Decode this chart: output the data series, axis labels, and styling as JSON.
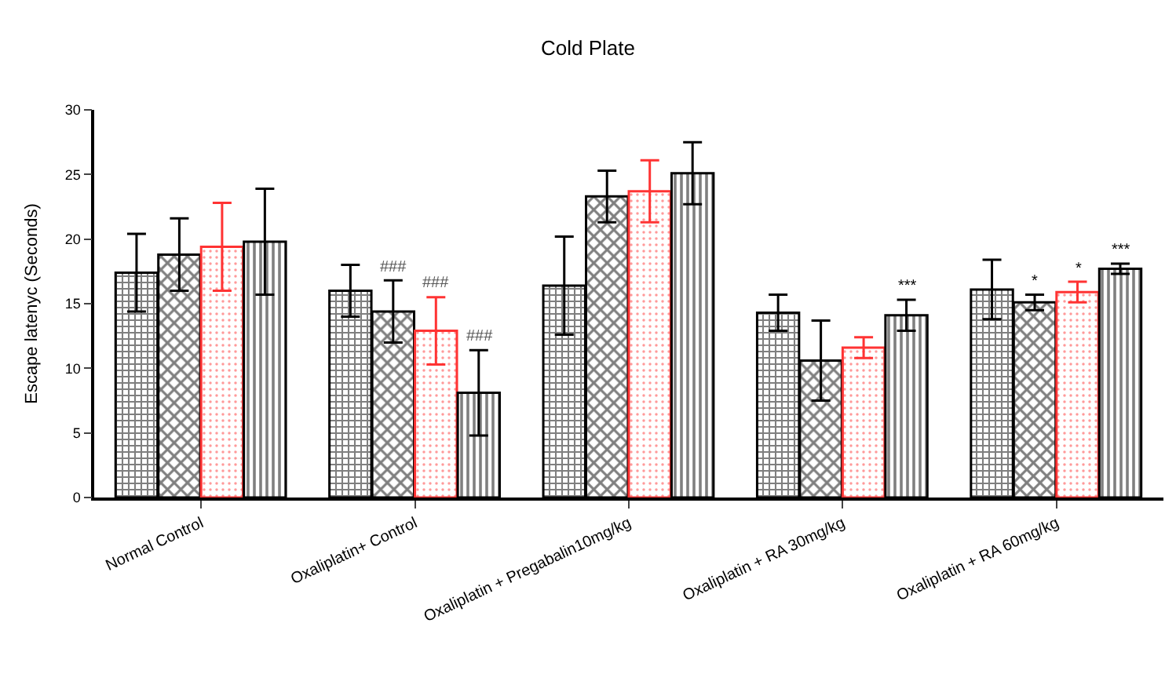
{
  "chart_data": {
    "type": "bar",
    "title": "Cold Plate",
    "ylabel": "Escape latenyc (Seconds)",
    "categories": [
      "Normal Control",
      "Oxaliplatin+ Control",
      "Oxaliplatin + Pregabalin10mg/kg",
      "Oxaliplatin + RA 30mg/kg",
      "Oxaliplatin + RA 60mg/kg"
    ],
    "series": [
      {
        "color": "#000000",
        "values": [
          17.4,
          16.0,
          16.4,
          14.3,
          16.1
        ],
        "errors": [
          3.0,
          2.0,
          3.8,
          1.4,
          2.3
        ],
        "value_labels": [
          null,
          null,
          null,
          null,
          null
        ]
      },
      {
        "color": "#000000",
        "values": [
          18.8,
          14.4,
          23.3,
          10.6,
          15.1
        ],
        "errors": [
          2.8,
          2.4,
          2.0,
          3.1,
          0.6
        ],
        "value_labels": [
          null,
          "###",
          null,
          null,
          "*"
        ]
      },
      {
        "color": "#ff3333",
        "values": [
          19.4,
          12.9,
          23.7,
          11.6,
          15.9
        ],
        "errors": [
          3.4,
          2.6,
          2.4,
          0.8,
          0.8
        ],
        "value_labels": [
          null,
          "###",
          null,
          null,
          "*"
        ]
      },
      {
        "color": "#000000",
        "values": [
          19.8,
          8.1,
          25.1,
          14.1,
          17.7
        ],
        "errors": [
          4.1,
          3.3,
          2.4,
          1.2,
          0.4
        ],
        "value_labels": [
          null,
          "###",
          null,
          "***",
          "***"
        ]
      }
    ],
    "ylim": [
      0,
      30
    ],
    "yticks": [
      0,
      5,
      10,
      15,
      20,
      25,
      30
    ]
  }
}
